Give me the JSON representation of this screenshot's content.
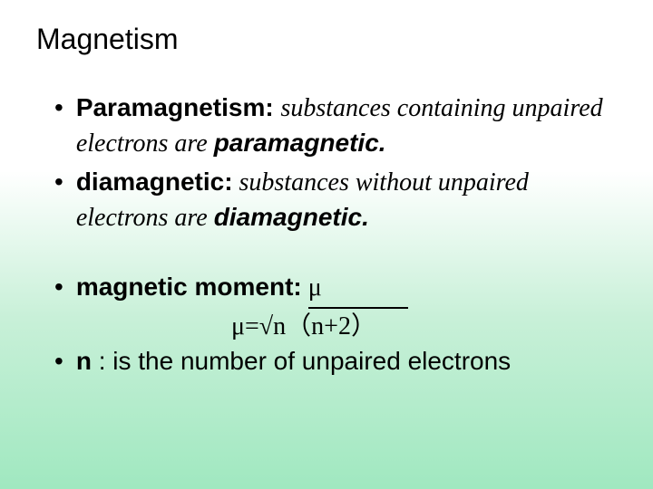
{
  "title": "Magnetism",
  "bullets": {
    "item1": {
      "term": "Paramagnetism:",
      "desc1": "substances containing unpaired electrons are ",
      "highlight": "paramagnetic."
    },
    "item2": {
      "term": "diamagnetic:",
      "desc1": " substances without unpaired electrons are ",
      "highlight": "diamagnetic."
    },
    "item3": {
      "term": " magnetic moment:",
      "symbol": " μ"
    },
    "formula": {
      "text": "μ=√n（n+2）"
    },
    "item4": {
      "term": "n",
      "desc": " : is the number of unpaired electrons"
    }
  },
  "colors": {
    "text": "#000000",
    "bg_top": "#ffffff",
    "bg_bottom": "#a0e8c0"
  }
}
